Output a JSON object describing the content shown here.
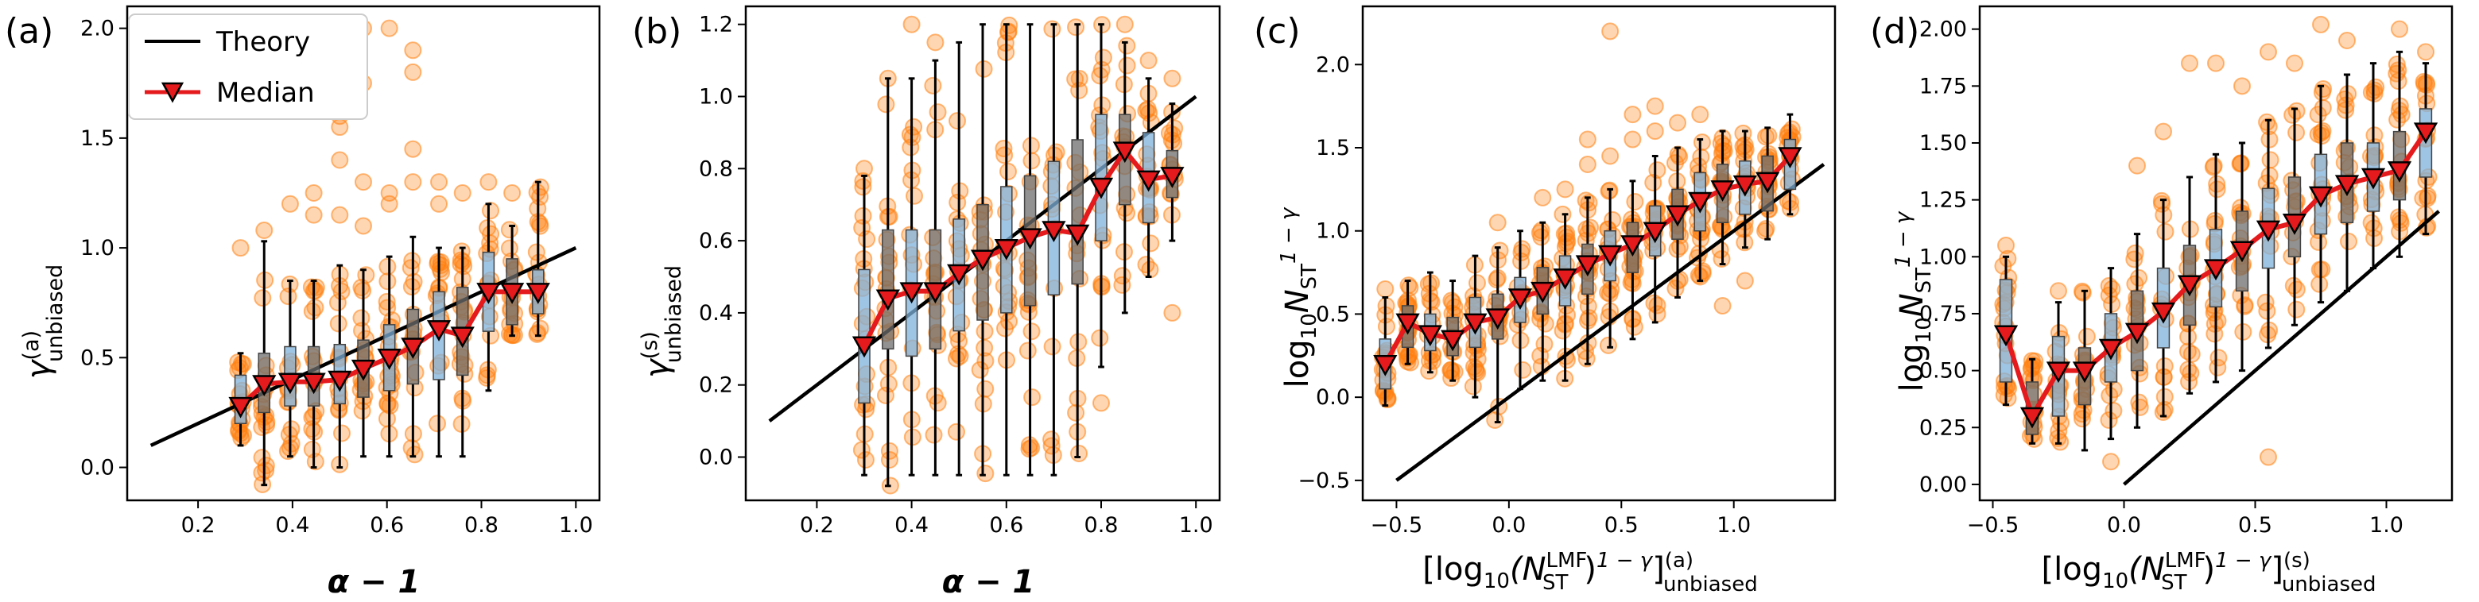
{
  "legend": {
    "theory": "Theory",
    "median": "Median"
  },
  "colors": {
    "theory": "#000000",
    "median": "#e41a1c",
    "marker": "#e41a1c",
    "scatter": "#ff7f0e",
    "box_a": "#7fb2dc",
    "box_b": "#6e6e6e"
  },
  "chart_data": [
    {
      "id": "a",
      "type": "box-scatter",
      "panel_label": "(a)",
      "xlabel": "α − 1",
      "ylabel_main": "γ",
      "ylabel_sup": "(a)",
      "ylabel_sub": "unbiased",
      "xlim": [
        0.05,
        1.05
      ],
      "ylim": [
        -0.15,
        2.1
      ],
      "xticks": [
        0.2,
        0.4,
        0.6,
        0.8,
        1.0
      ],
      "xtick_labels": [
        "0.2",
        "0.4",
        "0.6",
        "0.8",
        "1.0"
      ],
      "yticks": [
        0.0,
        0.5,
        1.0,
        1.5,
        2.0
      ],
      "ytick_labels": [
        "0.0",
        "0.5",
        "1.0",
        "1.5",
        "2.0"
      ],
      "theory": [
        [
          0.1,
          0.1
        ],
        [
          1.0,
          1.0
        ]
      ],
      "boxes": [
        {
          "x": 0.29,
          "q1": 0.2,
          "q3": 0.42,
          "wlo": 0.1,
          "whi": 0.52,
          "median": 0.28
        },
        {
          "x": 0.34,
          "q1": 0.25,
          "q3": 0.52,
          "wlo": -0.08,
          "whi": 1.03,
          "median": 0.38
        },
        {
          "x": 0.395,
          "q1": 0.28,
          "q3": 0.55,
          "wlo": 0.05,
          "whi": 0.85,
          "median": 0.39
        },
        {
          "x": 0.445,
          "q1": 0.28,
          "q3": 0.55,
          "wlo": 0.0,
          "whi": 0.85,
          "median": 0.39
        },
        {
          "x": 0.5,
          "q1": 0.29,
          "q3": 0.56,
          "wlo": 0.0,
          "whi": 0.92,
          "median": 0.4
        },
        {
          "x": 0.55,
          "q1": 0.32,
          "q3": 0.58,
          "wlo": 0.05,
          "whi": 0.9,
          "median": 0.45
        },
        {
          "x": 0.605,
          "q1": 0.35,
          "q3": 0.65,
          "wlo": 0.05,
          "whi": 0.96,
          "median": 0.5
        },
        {
          "x": 0.655,
          "q1": 0.38,
          "q3": 0.72,
          "wlo": 0.05,
          "whi": 1.05,
          "median": 0.55
        },
        {
          "x": 0.71,
          "q1": 0.4,
          "q3": 0.8,
          "wlo": 0.05,
          "whi": 1.0,
          "median": 0.63
        },
        {
          "x": 0.76,
          "q1": 0.42,
          "q3": 0.82,
          "wlo": 0.05,
          "whi": 1.0,
          "median": 0.6
        },
        {
          "x": 0.815,
          "q1": 0.62,
          "q3": 0.98,
          "wlo": 0.35,
          "whi": 1.2,
          "median": 0.8
        },
        {
          "x": 0.865,
          "q1": 0.65,
          "q3": 0.95,
          "wlo": 0.6,
          "whi": 1.1,
          "median": 0.8
        },
        {
          "x": 0.92,
          "q1": 0.7,
          "q3": 0.9,
          "wlo": 0.6,
          "whi": 1.3,
          "median": 0.8
        }
      ],
      "outliers": [
        [
          0.29,
          1.0
        ],
        [
          0.34,
          1.08
        ],
        [
          0.395,
          1.2
        ],
        [
          0.445,
          1.15
        ],
        [
          0.445,
          1.25
        ],
        [
          0.5,
          1.4
        ],
        [
          0.5,
          1.55
        ],
        [
          0.5,
          1.15
        ],
        [
          0.55,
          1.1
        ],
        [
          0.55,
          1.3
        ],
        [
          0.605,
          1.2
        ],
        [
          0.605,
          1.25
        ],
        [
          0.655,
          1.3
        ],
        [
          0.655,
          1.45
        ],
        [
          0.71,
          1.2
        ],
        [
          0.71,
          1.3
        ],
        [
          0.76,
          1.25
        ],
        [
          0.815,
          1.3
        ],
        [
          0.865,
          1.25
        ],
        [
          0.5,
          1.6
        ],
        [
          0.55,
          1.75
        ],
        [
          0.55,
          2.0
        ],
        [
          0.605,
          2.0
        ],
        [
          0.655,
          1.8
        ],
        [
          0.655,
          1.9
        ]
      ]
    },
    {
      "id": "b",
      "type": "box-scatter",
      "panel_label": "(b)",
      "xlabel": "α − 1",
      "ylabel_main": "γ",
      "ylabel_sup": "(s)",
      "ylabel_sub": "unbiased",
      "xlim": [
        0.05,
        1.05
      ],
      "ylim": [
        -0.12,
        1.25
      ],
      "xticks": [
        0.2,
        0.4,
        0.6,
        0.8,
        1.0
      ],
      "xtick_labels": [
        "0.2",
        "0.4",
        "0.6",
        "0.8",
        "1.0"
      ],
      "yticks": [
        0.0,
        0.2,
        0.4,
        0.6,
        0.8,
        1.0,
        1.2
      ],
      "ytick_labels": [
        "0.0",
        "0.2",
        "0.4",
        "0.6",
        "0.8",
        "1.0",
        "1.2"
      ],
      "theory": [
        [
          0.1,
          0.1
        ],
        [
          1.0,
          1.0
        ]
      ],
      "boxes": [
        {
          "x": 0.3,
          "q1": 0.15,
          "q3": 0.52,
          "wlo": -0.05,
          "whi": 0.78,
          "median": 0.31
        },
        {
          "x": 0.35,
          "q1": 0.3,
          "q3": 0.63,
          "wlo": -0.08,
          "whi": 1.05,
          "median": 0.44
        },
        {
          "x": 0.4,
          "q1": 0.28,
          "q3": 0.63,
          "wlo": -0.05,
          "whi": 1.05,
          "median": 0.46
        },
        {
          "x": 0.45,
          "q1": 0.3,
          "q3": 0.63,
          "wlo": -0.05,
          "whi": 1.1,
          "median": 0.46
        },
        {
          "x": 0.5,
          "q1": 0.35,
          "q3": 0.66,
          "wlo": -0.05,
          "whi": 1.15,
          "median": 0.51
        },
        {
          "x": 0.55,
          "q1": 0.38,
          "q3": 0.7,
          "wlo": -0.05,
          "whi": 1.2,
          "median": 0.55
        },
        {
          "x": 0.6,
          "q1": 0.4,
          "q3": 0.75,
          "wlo": -0.05,
          "whi": 1.2,
          "median": 0.58
        },
        {
          "x": 0.65,
          "q1": 0.42,
          "q3": 0.78,
          "wlo": -0.05,
          "whi": 1.2,
          "median": 0.61
        },
        {
          "x": 0.7,
          "q1": 0.45,
          "q3": 0.82,
          "wlo": -0.05,
          "whi": 1.2,
          "median": 0.63
        },
        {
          "x": 0.75,
          "q1": 0.48,
          "q3": 0.88,
          "wlo": 0.0,
          "whi": 1.2,
          "median": 0.62
        },
        {
          "x": 0.8,
          "q1": 0.6,
          "q3": 0.95,
          "wlo": 0.25,
          "whi": 1.2,
          "median": 0.75
        },
        {
          "x": 0.85,
          "q1": 0.7,
          "q3": 0.95,
          "wlo": 0.4,
          "whi": 1.15,
          "median": 0.85
        },
        {
          "x": 0.9,
          "q1": 0.65,
          "q3": 0.9,
          "wlo": 0.5,
          "whi": 1.05,
          "median": 0.77
        },
        {
          "x": 0.95,
          "q1": 0.72,
          "q3": 0.85,
          "wlo": 0.6,
          "whi": 0.98,
          "median": 0.78
        }
      ],
      "outliers": [
        [
          0.3,
          0.8
        ],
        [
          0.35,
          1.05
        ],
        [
          0.4,
          1.2
        ],
        [
          0.45,
          1.15
        ],
        [
          0.75,
          0.07
        ],
        [
          0.8,
          0.15
        ],
        [
          0.85,
          1.2
        ],
        [
          0.9,
          1.1
        ],
        [
          0.95,
          0.4
        ],
        [
          0.95,
          1.05
        ]
      ]
    },
    {
      "id": "c",
      "type": "box-scatter",
      "panel_label": "(c)",
      "xlabel": "[log₁₀(N_ST^LMF)^(1−γ)]^(a)_unbiased",
      "xlabel_open": "[log",
      "xlabel_sub10": "10",
      "xlabel_paren": "(N",
      "xlabel_sup_lmf": "LMF",
      "xlabel_sub_st": "ST",
      "xlabel_close": ")",
      "xlabel_exp": "1 − γ",
      "xlabel_bracket": "]",
      "xlabel_sup_a": "(a)",
      "xlabel_sub_unb": "unbiased",
      "ylabel_pre": "log",
      "ylabel_sub10": "10",
      "ylabel_n": "N",
      "ylabel_sub_st": "ST",
      "ylabel_exp": "1 − γ",
      "xlim": [
        -0.65,
        1.45
      ],
      "ylim": [
        -0.62,
        2.35
      ],
      "xticks": [
        -0.5,
        0.0,
        0.5,
        1.0
      ],
      "xtick_labels": [
        "−0.5",
        "0.0",
        "0.5",
        "1.0"
      ],
      "yticks": [
        -0.5,
        0.0,
        0.5,
        1.0,
        1.5,
        2.0
      ],
      "ytick_labels": [
        "−0.5",
        "0.0",
        "0.5",
        "1.0",
        "1.5",
        "2.0"
      ],
      "theory": [
        [
          -0.5,
          -0.5
        ],
        [
          1.4,
          1.4
        ]
      ],
      "boxes": [
        {
          "x": -0.55,
          "q1": 0.05,
          "q3": 0.35,
          "wlo": -0.05,
          "whi": 0.6,
          "median": 0.2
        },
        {
          "x": -0.45,
          "q1": 0.3,
          "q3": 0.55,
          "wlo": 0.2,
          "whi": 0.7,
          "median": 0.45
        },
        {
          "x": -0.35,
          "q1": 0.28,
          "q3": 0.5,
          "wlo": 0.15,
          "whi": 0.75,
          "median": 0.38
        },
        {
          "x": -0.25,
          "q1": 0.25,
          "q3": 0.48,
          "wlo": 0.1,
          "whi": 0.7,
          "median": 0.35
        },
        {
          "x": -0.15,
          "q1": 0.3,
          "q3": 0.6,
          "wlo": 0.0,
          "whi": 0.85,
          "median": 0.45
        },
        {
          "x": -0.05,
          "q1": 0.35,
          "q3": 0.62,
          "wlo": -0.15,
          "whi": 0.9,
          "median": 0.48
        },
        {
          "x": 0.05,
          "q1": 0.45,
          "q3": 0.72,
          "wlo": 0.05,
          "whi": 1.0,
          "median": 0.6
        },
        {
          "x": 0.15,
          "q1": 0.5,
          "q3": 0.78,
          "wlo": 0.1,
          "whi": 1.05,
          "median": 0.64
        },
        {
          "x": 0.25,
          "q1": 0.55,
          "q3": 0.85,
          "wlo": 0.1,
          "whi": 1.1,
          "median": 0.72
        },
        {
          "x": 0.35,
          "q1": 0.62,
          "q3": 0.92,
          "wlo": 0.2,
          "whi": 1.2,
          "median": 0.8
        },
        {
          "x": 0.45,
          "q1": 0.7,
          "q3": 1.0,
          "wlo": 0.3,
          "whi": 1.25,
          "median": 0.86
        },
        {
          "x": 0.55,
          "q1": 0.75,
          "q3": 1.05,
          "wlo": 0.35,
          "whi": 1.3,
          "median": 0.92
        },
        {
          "x": 0.65,
          "q1": 0.85,
          "q3": 1.15,
          "wlo": 0.45,
          "whi": 1.45,
          "median": 1.0
        },
        {
          "x": 0.75,
          "q1": 0.95,
          "q3": 1.25,
          "wlo": 0.6,
          "whi": 1.5,
          "median": 1.1
        },
        {
          "x": 0.85,
          "q1": 1.0,
          "q3": 1.35,
          "wlo": 0.7,
          "whi": 1.55,
          "median": 1.18
        },
        {
          "x": 0.95,
          "q1": 1.05,
          "q3": 1.4,
          "wlo": 0.8,
          "whi": 1.6,
          "median": 1.25
        },
        {
          "x": 1.05,
          "q1": 1.1,
          "q3": 1.42,
          "wlo": 0.9,
          "whi": 1.6,
          "median": 1.28
        },
        {
          "x": 1.15,
          "q1": 1.12,
          "q3": 1.45,
          "wlo": 0.95,
          "whi": 1.62,
          "median": 1.3
        },
        {
          "x": 1.25,
          "q1": 1.25,
          "q3": 1.55,
          "wlo": 1.1,
          "whi": 1.7,
          "median": 1.45
        }
      ],
      "outliers": [
        [
          -0.55,
          0.65
        ],
        [
          -0.05,
          1.05
        ],
        [
          0.15,
          1.2
        ],
        [
          0.25,
          1.25
        ],
        [
          0.35,
          1.4
        ],
        [
          0.35,
          1.55
        ],
        [
          0.45,
          1.45
        ],
        [
          0.45,
          2.2
        ],
        [
          0.55,
          1.55
        ],
        [
          0.55,
          1.7
        ],
        [
          0.65,
          1.6
        ],
        [
          0.65,
          1.75
        ],
        [
          0.75,
          1.65
        ],
        [
          0.85,
          1.7
        ],
        [
          0.95,
          0.55
        ],
        [
          1.05,
          0.7
        ]
      ]
    },
    {
      "id": "d",
      "type": "box-scatter",
      "panel_label": "(d)",
      "xlabel": "[log₁₀(N_ST^LMF)^(1−γ)]^(s)_unbiased",
      "xlabel_open": "[log",
      "xlabel_sub10": "10",
      "xlabel_paren": "(N",
      "xlabel_sup_lmf": "LMF",
      "xlabel_sub_st": "ST",
      "xlabel_close": ")",
      "xlabel_exp": "1 − γ",
      "xlabel_bracket": "]",
      "xlabel_sup_s": "(s)",
      "xlabel_sub_unb": "unbiased",
      "ylabel_pre": "log",
      "ylabel_sub10": "10",
      "ylabel_n": "N",
      "ylabel_sub_st": "ST",
      "ylabel_exp": "1 − γ",
      "xlim": [
        -0.55,
        1.25
      ],
      "ylim": [
        -0.07,
        2.1
      ],
      "xticks": [
        -0.5,
        0.0,
        0.5,
        1.0
      ],
      "xtick_labels": [
        "−0.5",
        "0.0",
        "0.5",
        "1.0"
      ],
      "yticks": [
        0.0,
        0.25,
        0.5,
        0.75,
        1.0,
        1.25,
        1.5,
        1.75,
        2.0
      ],
      "ytick_labels": [
        "0.00",
        "0.25",
        "0.50",
        "0.75",
        "1.00",
        "1.25",
        "1.50",
        "1.75",
        "2.00"
      ],
      "theory": [
        [
          0.0,
          0.0
        ],
        [
          1.2,
          1.2
        ]
      ],
      "boxes": [
        {
          "x": -0.45,
          "q1": 0.45,
          "q3": 0.9,
          "wlo": 0.35,
          "whi": 1.0,
          "median": 0.66
        },
        {
          "x": -0.35,
          "q1": 0.22,
          "q3": 0.45,
          "wlo": 0.18,
          "whi": 0.55,
          "median": 0.3
        },
        {
          "x": -0.25,
          "q1": 0.3,
          "q3": 0.65,
          "wlo": 0.18,
          "whi": 0.8,
          "median": 0.5
        },
        {
          "x": -0.15,
          "q1": 0.35,
          "q3": 0.6,
          "wlo": 0.15,
          "whi": 0.85,
          "median": 0.5
        },
        {
          "x": -0.05,
          "q1": 0.45,
          "q3": 0.75,
          "wlo": 0.2,
          "whi": 0.95,
          "median": 0.6
        },
        {
          "x": 0.05,
          "q1": 0.5,
          "q3": 0.85,
          "wlo": 0.25,
          "whi": 1.1,
          "median": 0.67
        },
        {
          "x": 0.15,
          "q1": 0.6,
          "q3": 0.95,
          "wlo": 0.3,
          "whi": 1.25,
          "median": 0.76
        },
        {
          "x": 0.25,
          "q1": 0.7,
          "q3": 1.05,
          "wlo": 0.4,
          "whi": 1.35,
          "median": 0.88
        },
        {
          "x": 0.35,
          "q1": 0.78,
          "q3": 1.12,
          "wlo": 0.45,
          "whi": 1.45,
          "median": 0.95
        },
        {
          "x": 0.45,
          "q1": 0.85,
          "q3": 1.2,
          "wlo": 0.5,
          "whi": 1.5,
          "median": 1.03
        },
        {
          "x": 0.55,
          "q1": 0.95,
          "q3": 1.3,
          "wlo": 0.6,
          "whi": 1.6,
          "median": 1.12
        },
        {
          "x": 0.65,
          "q1": 1.0,
          "q3": 1.35,
          "wlo": 0.7,
          "whi": 1.65,
          "median": 1.15
        },
        {
          "x": 0.75,
          "q1": 1.1,
          "q3": 1.45,
          "wlo": 0.8,
          "whi": 1.75,
          "median": 1.27
        },
        {
          "x": 0.85,
          "q1": 1.15,
          "q3": 1.5,
          "wlo": 0.85,
          "whi": 1.8,
          "median": 1.32
        },
        {
          "x": 0.95,
          "q1": 1.2,
          "q3": 1.5,
          "wlo": 0.95,
          "whi": 1.85,
          "median": 1.35
        },
        {
          "x": 1.05,
          "q1": 1.25,
          "q3": 1.55,
          "wlo": 1.0,
          "whi": 1.9,
          "median": 1.38
        },
        {
          "x": 1.15,
          "q1": 1.35,
          "q3": 1.65,
          "wlo": 1.1,
          "whi": 1.85,
          "median": 1.55
        }
      ],
      "outliers": [
        [
          -0.45,
          1.05
        ],
        [
          -0.25,
          0.85
        ],
        [
          -0.05,
          0.1
        ],
        [
          0.05,
          1.4
        ],
        [
          0.15,
          1.55
        ],
        [
          0.25,
          1.85
        ],
        [
          0.35,
          1.85
        ],
        [
          0.45,
          1.75
        ],
        [
          0.55,
          1.9
        ],
        [
          0.55,
          0.12
        ],
        [
          0.65,
          1.85
        ],
        [
          0.75,
          2.02
        ],
        [
          0.85,
          1.95
        ],
        [
          1.05,
          2.0
        ],
        [
          1.15,
          1.9
        ]
      ]
    }
  ]
}
